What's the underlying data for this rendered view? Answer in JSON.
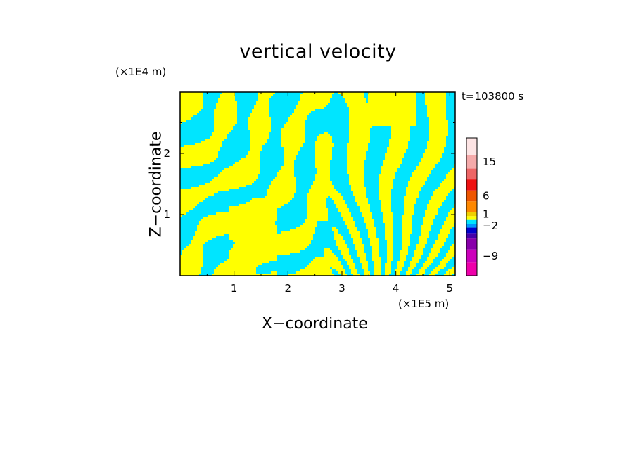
{
  "chart_data": {
    "type": "heatmap",
    "title": "vertical velocity",
    "xlabel": "X−coordinate",
    "ylabel": "Z−coordinate",
    "x_unit_label": "(×1E5 m)",
    "y_unit_label": "(×1E4 m)",
    "time_label": "t=103800 s",
    "xlim": [
      0,
      5.1
    ],
    "ylim": [
      0,
      3
    ],
    "x_ticks": [
      1,
      2,
      3,
      4,
      5
    ],
    "x_tick_labels": [
      "1",
      "2",
      "3",
      "4",
      "5"
    ],
    "y_ticks": [
      1,
      2
    ],
    "y_tick_labels": [
      "1",
      "2"
    ],
    "dominant_colors": {
      "positive": "#ffff00",
      "negative": "#00e5ff"
    },
    "colorbar": {
      "colors": [
        "#ee00aa",
        "#cc00bb",
        "#8800aa",
        "#4400aa",
        "#0000cc",
        "#0099ff",
        "#00e5ff",
        "#ffff00",
        "#f0d000",
        "#ff8800",
        "#ee5500",
        "#ee1111",
        "#ee6666",
        "#f5aaaa",
        "#fde4e4"
      ],
      "tick_labels": [
        "−9",
        "−2",
        "1",
        "6",
        "15"
      ]
    }
  }
}
